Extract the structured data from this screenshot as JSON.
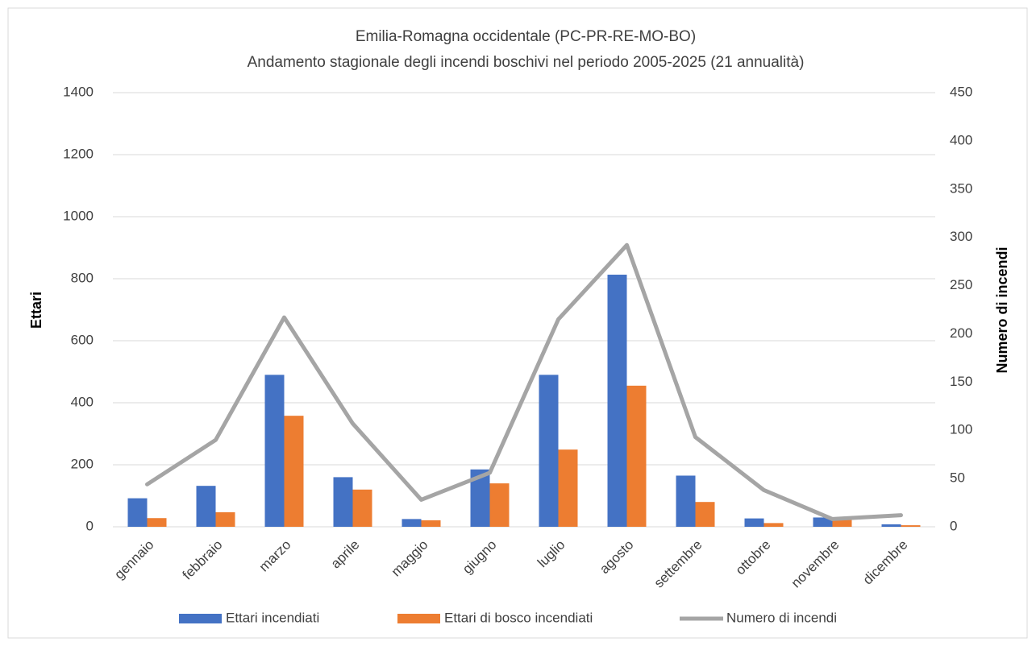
{
  "chart_data": {
    "type": "bar-line",
    "title": "Emilia-Romagna occidentale (PC-PR-RE-MO-BO)",
    "subtitle": "Andamento stagionale degli incendi boschivi nel periodo 2005-2025 (21 annualità)",
    "y_label": "Ettari",
    "y2_label": "Numero di incendi",
    "categories": [
      "gennaio",
      "febbraio",
      "marzo",
      "aprile",
      "maggio",
      "giugno",
      "luglio",
      "agosto",
      "settembre",
      "ottobre",
      "novembre",
      "dicembre"
    ],
    "series": [
      {
        "name": "Ettari incendiati",
        "type": "bar",
        "color": "#4472c4",
        "values": [
          92,
          132,
          490,
          160,
          25,
          185,
          490,
          813,
          165,
          27,
          30,
          8
        ]
      },
      {
        "name": "Ettari di bosco incendiati",
        "type": "bar",
        "color": "#ed7d31",
        "values": [
          28,
          47,
          358,
          120,
          21,
          140,
          249,
          455,
          80,
          12,
          22,
          5
        ]
      },
      {
        "name": "Numero di incendi",
        "type": "line",
        "axis": "y2",
        "color": "#a5a5a5",
        "values": [
          44,
          90,
          217,
          107,
          28,
          56,
          215,
          292,
          93,
          38,
          8,
          12
        ]
      }
    ],
    "ylim": [
      0,
      1400
    ],
    "yticks": [
      0,
      200,
      400,
      600,
      800,
      1000,
      1200,
      1400
    ],
    "y2lim": [
      0,
      450
    ],
    "y2ticks": [
      0,
      50,
      100,
      150,
      200,
      250,
      300,
      350,
      400,
      450
    ],
    "grid": true,
    "legend": "bottom"
  }
}
